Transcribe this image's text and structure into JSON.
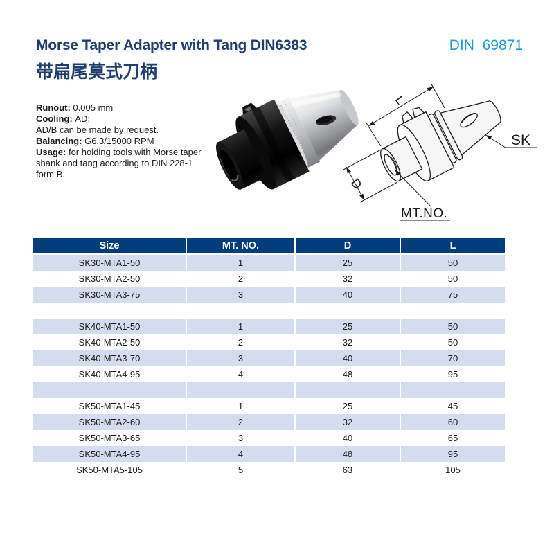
{
  "header": {
    "title": "Morse Taper Adapter with Tang DIN6383",
    "subtitle_cn": "带扁尾莫式刀柄",
    "standard": "DIN  69871"
  },
  "specs": {
    "lines": [
      {
        "label": "Runout:",
        "text": "0.005 mm"
      },
      {
        "label": "Cooling:",
        "text": "AD;"
      },
      {
        "label": "",
        "text": "AD/B can be made by request."
      },
      {
        "label": "Balancing:",
        "text": "G6.3/15000 RPM"
      },
      {
        "label": "Usage:",
        "text": "for holding tools with Morse taper shank and tang according to DIN 228-1 form B."
      }
    ]
  },
  "drawing": {
    "labels": {
      "length": "L",
      "diameter": "D",
      "taper": "SK",
      "morse": "MT.NO."
    }
  },
  "table": {
    "columns": [
      "Size",
      "MT. NO.",
      "D",
      "L"
    ],
    "rows": [
      [
        "SK30-MTA1-50",
        "1",
        "25",
        "50"
      ],
      [
        "SK30-MTA2-50",
        "2",
        "32",
        "50"
      ],
      [
        "SK30-MTA3-75",
        "3",
        "40",
        "75"
      ],
      [
        "",
        "",
        "",
        ""
      ],
      [
        "SK40-MTA1-50",
        "1",
        "25",
        "50"
      ],
      [
        "SK40-MTA2-50",
        "2",
        "32",
        "50"
      ],
      [
        "SK40-MTA3-70",
        "3",
        "40",
        "70"
      ],
      [
        "SK40-MTA4-95",
        "4",
        "48",
        "95"
      ],
      [
        "",
        "",
        "",
        ""
      ],
      [
        "SK50-MTA1-45",
        "1",
        "25",
        "45"
      ],
      [
        "SK50-MTA2-60",
        "2",
        "32",
        "60"
      ],
      [
        "SK50-MTA3-65",
        "3",
        "40",
        "65"
      ],
      [
        "SK50-MTA4-95",
        "4",
        "48",
        "95"
      ],
      [
        "SK50-MTA5-105",
        "5",
        "63",
        "105"
      ]
    ]
  },
  "colors": {
    "title_navy": "#1d3e6f",
    "standard_cyan": "#199cd8",
    "table_header_bg": "#003d7c",
    "table_header_text": "#ffffff",
    "row_stripe": "#d3ddef",
    "body_text": "#1a1a1a"
  }
}
